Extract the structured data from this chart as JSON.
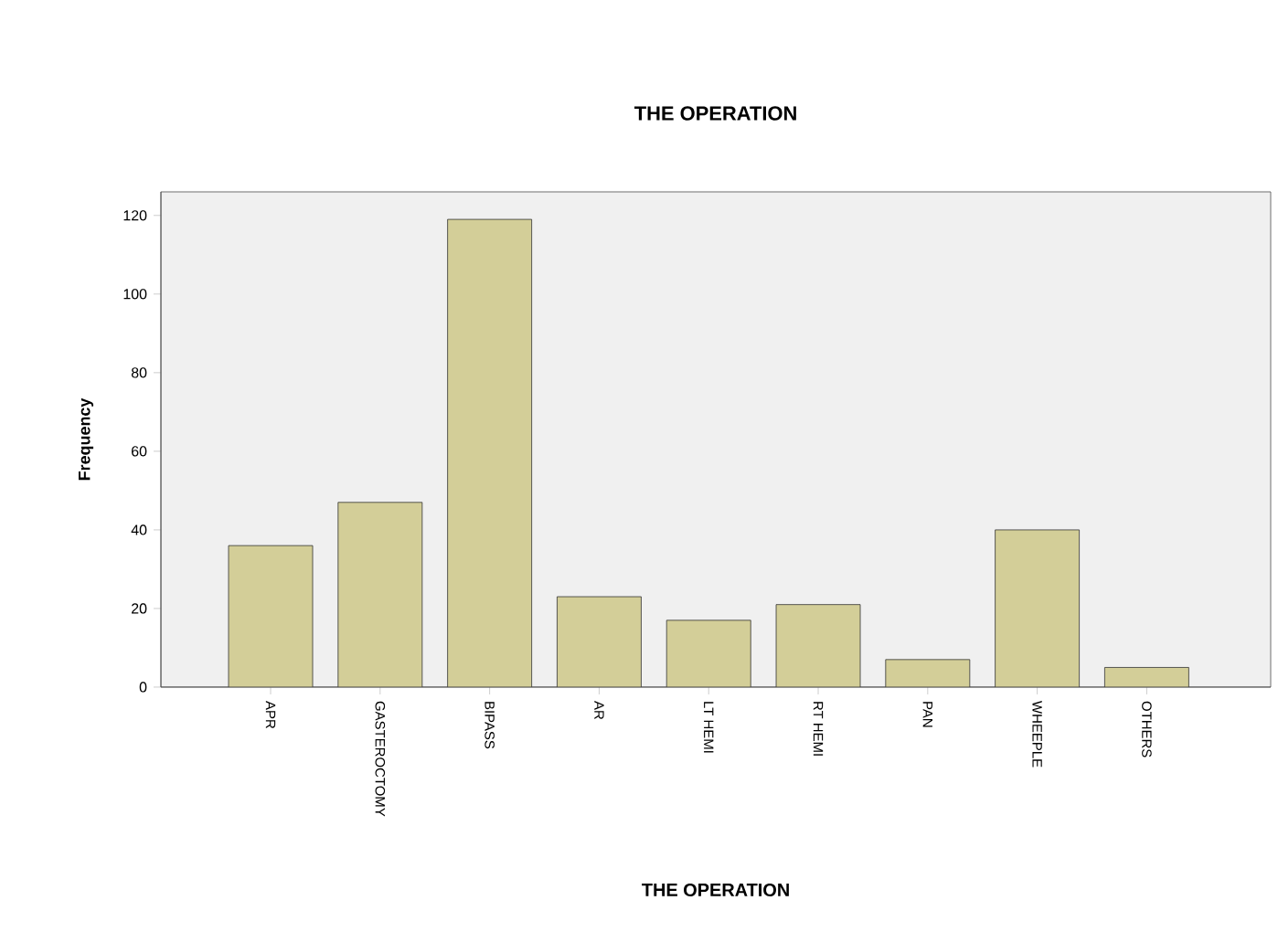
{
  "chart_data": {
    "type": "bar",
    "title": "THE OPERATION",
    "xlabel": "THE OPERATION",
    "ylabel": "Frequency",
    "categories": [
      "APR",
      "GASTEROCTOMY",
      "BIPASS",
      "AR",
      "LT HEMI",
      "RT HEMI",
      "PAN",
      "WHEEPLE",
      "OTHERS"
    ],
    "values": [
      36,
      47,
      119,
      23,
      17,
      21,
      7,
      40,
      5
    ],
    "color": "#d3ce98",
    "ylim": [
      0,
      126
    ],
    "yticks": [
      0,
      20,
      40,
      60,
      80,
      100,
      120
    ],
    "grid": false
  }
}
